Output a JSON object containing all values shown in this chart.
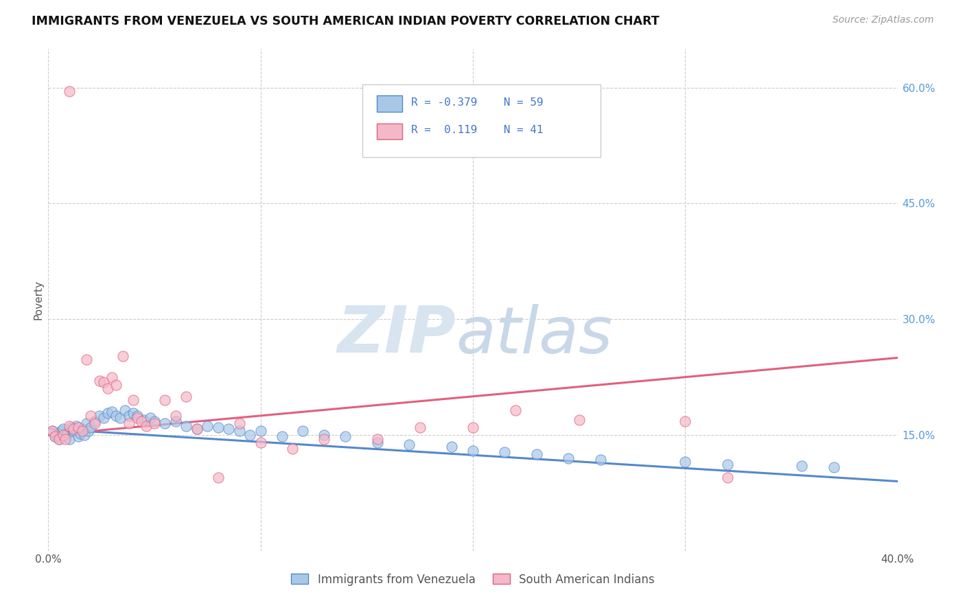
{
  "title": "IMMIGRANTS FROM VENEZUELA VS SOUTH AMERICAN INDIAN POVERTY CORRELATION CHART",
  "source": "Source: ZipAtlas.com",
  "ylabel": "Poverty",
  "xlim": [
    0.0,
    0.4
  ],
  "ylim": [
    0.0,
    0.65
  ],
  "legend_label1": "Immigrants from Venezuela",
  "legend_label2": "South American Indians",
  "color_blue": "#a8c8e8",
  "color_pink": "#f4b8c8",
  "color_blue_line": "#5588cc",
  "color_pink_line": "#e06080",
  "watermark_zip": "ZIP",
  "watermark_atlas": "atlas",
  "watermark_color_zip": "#d8e4f0",
  "watermark_color_atlas": "#c8d8e8",
  "grid_color": "#cccccc",
  "blue_scatter_x": [
    0.002,
    0.003,
    0.004,
    0.005,
    0.006,
    0.007,
    0.008,
    0.009,
    0.01,
    0.011,
    0.012,
    0.013,
    0.014,
    0.015,
    0.016,
    0.017,
    0.018,
    0.019,
    0.02,
    0.022,
    0.024,
    0.026,
    0.028,
    0.03,
    0.032,
    0.034,
    0.036,
    0.038,
    0.04,
    0.042,
    0.045,
    0.048,
    0.05,
    0.055,
    0.06,
    0.065,
    0.07,
    0.075,
    0.08,
    0.085,
    0.09,
    0.095,
    0.1,
    0.11,
    0.12,
    0.13,
    0.14,
    0.155,
    0.17,
    0.19,
    0.2,
    0.215,
    0.23,
    0.245,
    0.26,
    0.3,
    0.32,
    0.355,
    0.37
  ],
  "blue_scatter_y": [
    0.155,
    0.148,
    0.15,
    0.145,
    0.155,
    0.158,
    0.148,
    0.152,
    0.145,
    0.16,
    0.155,
    0.162,
    0.148,
    0.152,
    0.158,
    0.15,
    0.165,
    0.155,
    0.16,
    0.168,
    0.175,
    0.172,
    0.178,
    0.18,
    0.175,
    0.172,
    0.182,
    0.175,
    0.178,
    0.175,
    0.17,
    0.172,
    0.168,
    0.165,
    0.168,
    0.162,
    0.158,
    0.162,
    0.16,
    0.158,
    0.155,
    0.15,
    0.155,
    0.148,
    0.155,
    0.15,
    0.148,
    0.14,
    0.138,
    0.135,
    0.13,
    0.128,
    0.125,
    0.12,
    0.118,
    0.115,
    0.112,
    0.11,
    0.108
  ],
  "pink_scatter_x": [
    0.002,
    0.003,
    0.005,
    0.007,
    0.008,
    0.01,
    0.012,
    0.014,
    0.016,
    0.018,
    0.02,
    0.022,
    0.024,
    0.026,
    0.028,
    0.03,
    0.032,
    0.035,
    0.038,
    0.04,
    0.042,
    0.044,
    0.046,
    0.05,
    0.055,
    0.06,
    0.065,
    0.07,
    0.08,
    0.09,
    0.1,
    0.115,
    0.13,
    0.155,
    0.175,
    0.2,
    0.22,
    0.25,
    0.3,
    0.32,
    0.01
  ],
  "pink_scatter_y": [
    0.155,
    0.148,
    0.145,
    0.15,
    0.145,
    0.162,
    0.158,
    0.16,
    0.155,
    0.248,
    0.175,
    0.165,
    0.22,
    0.218,
    0.21,
    0.225,
    0.215,
    0.252,
    0.165,
    0.195,
    0.172,
    0.168,
    0.162,
    0.165,
    0.195,
    0.175,
    0.2,
    0.158,
    0.095,
    0.165,
    0.14,
    0.132,
    0.145,
    0.145,
    0.16,
    0.16,
    0.182,
    0.17,
    0.168,
    0.095,
    0.595
  ],
  "blue_line_x": [
    0.0,
    0.4
  ],
  "blue_line_y": [
    0.158,
    0.09
  ],
  "pink_line_x": [
    0.0,
    0.4
  ],
  "pink_line_y": [
    0.15,
    0.25
  ]
}
